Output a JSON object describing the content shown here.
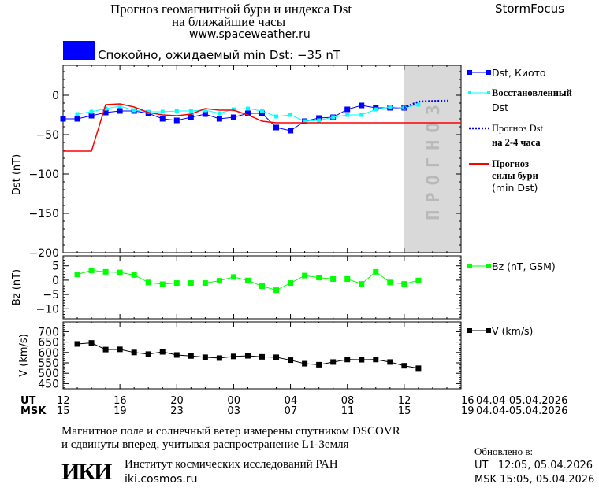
{
  "header": {
    "title_line1": "Прогноз геомагнитной бури и индекса Dst",
    "title_line2": "на ближайшие часы",
    "site": "www.spaceweather.ru",
    "brand": "StormFocus",
    "status_color": "#0000ff",
    "status_text": "Спокойно, ожидаемый min Dst: −35 nT"
  },
  "forecast_band_label": "ПРОГНОЗ",
  "legend": {
    "kyoto": "Dst, Киото",
    "restored_1": "Восстановленный",
    "restored_2": "Dst",
    "forecast_1": "Прогноз Dst",
    "forecast_2": "на 2-4 часа",
    "storm_1": "Прогноз",
    "storm_2": "силы бури",
    "storm_3": "(min Dst)",
    "bz": "Bz (nT, GSM)",
    "v": "V (km/s)"
  },
  "xaxis": {
    "ut_label": "UT",
    "msk_label": "MSK",
    "ut_ticks": [
      "12",
      "16",
      "20",
      "00",
      "04",
      "08",
      "12",
      "16"
    ],
    "msk_ticks": [
      "15",
      "19",
      "23",
      "03",
      "07",
      "11",
      "15",
      "19"
    ],
    "ut_range": "04.04-05.04.2026",
    "msk_range": "04.04-05.04.2026",
    "range": [
      "04.04 12:00",
      "05.04 16:00"
    ]
  },
  "chart_data": [
    {
      "type": "line",
      "ylabel": "Dst (nT)",
      "ylim": [
        -200,
        38
      ],
      "yticks": [
        0,
        -50,
        -100,
        -150,
        -200
      ],
      "ytick_labels": [
        "0",
        "−50",
        "−100",
        "−150",
        "−200"
      ],
      "forecast_region": [
        "05.04 12:00",
        "05.04 16:00"
      ],
      "series": [
        {
          "name": "Dst, Киото",
          "color": "#0000ff",
          "marker": "square",
          "x": [
            "04.04 12:00",
            "04.04 13:00",
            "04.04 14:00",
            "04.04 15:00",
            "04.04 16:00",
            "04.04 17:00",
            "04.04 18:00",
            "04.04 19:00",
            "04.04 20:00",
            "04.04 21:00",
            "04.04 22:00",
            "04.04 23:00",
            "05.04 00:00",
            "05.04 01:00",
            "05.04 02:00",
            "05.04 03:00",
            "05.04 04:00",
            "05.04 05:00",
            "05.04 06:00",
            "05.04 07:00",
            "05.04 08:00",
            "05.04 09:00",
            "05.04 10:00",
            "05.04 11:00",
            "05.04 12:00"
          ],
          "y": [
            -30,
            -30,
            -26,
            -22,
            -20,
            -20,
            -23,
            -30,
            -32,
            -28,
            -24,
            -30,
            -28,
            -23,
            -23,
            -41,
            -45,
            -33,
            -29,
            -28,
            -18,
            -13,
            -16,
            -16,
            -16
          ]
        },
        {
          "name": "Восстановленный Dst",
          "color": "#00ffff",
          "marker": "square-small",
          "x": [
            "04.04 13:00",
            "04.04 14:00",
            "04.04 15:00",
            "04.04 16:00",
            "04.04 17:00",
            "04.04 18:00",
            "04.04 19:00",
            "04.04 20:00",
            "04.04 21:00",
            "04.04 22:00",
            "04.04 23:00",
            "05.04 00:00",
            "05.04 01:00",
            "05.04 02:00",
            "05.04 03:00",
            "05.04 04:00",
            "05.04 05:00",
            "05.04 06:00",
            "05.04 07:00",
            "05.04 08:00",
            "05.04 09:00",
            "05.04 10:00",
            "05.04 11:00",
            "05.04 12:00",
            "05.04 13:00"
          ],
          "y": [
            -24,
            -21,
            -17,
            -14,
            -19,
            -21,
            -21,
            -20,
            -20,
            -19,
            -23,
            -18,
            -17,
            -20,
            -27,
            -25,
            -33,
            -32,
            -28,
            -25,
            -25,
            -18,
            -15,
            -16,
            -12
          ]
        },
        {
          "name": "Прогноз Dst на 2-4 часа",
          "color": "#0000ff",
          "style": "dotted",
          "x": [
            "05.04 12:00",
            "05.04 13:00",
            "05.04 15:06"
          ],
          "y": [
            -16,
            -8,
            -7
          ]
        },
        {
          "name": "Прогноз силы бури (min Dst)",
          "color": "#ff0000",
          "x": [
            "04.04 12:00",
            "04.04 14:00",
            "04.04 15:00",
            "04.04 16:00",
            "04.04 17:00",
            "04.04 18:00",
            "04.04 19:00",
            "04.04 20:00",
            "04.04 21:00",
            "04.04 22:00",
            "04.04 23:00",
            "05.04 00:00",
            "05.04 01:00",
            "05.04 02:00",
            "05.04 03:00",
            "05.04 16:00"
          ],
          "y": [
            -71,
            -71,
            -12,
            -11,
            -15,
            -22,
            -25,
            -26,
            -24,
            -17,
            -19,
            -19,
            -25,
            -33,
            -35,
            -35
          ]
        }
      ]
    },
    {
      "type": "line",
      "ylabel": "Bz (nT)",
      "ylim": [
        -13.5,
        8.5
      ],
      "yticks": [
        5,
        0,
        -5,
        -10
      ],
      "ytick_labels": [
        "5",
        "0",
        "−5",
        "−10"
      ],
      "series": [
        {
          "name": "Bz (nT, GSM)",
          "color": "#00ff00",
          "marker": "square",
          "x": [
            "04.04 13:00",
            "04.04 14:00",
            "04.04 15:00",
            "04.04 16:00",
            "04.04 17:00",
            "04.04 18:00",
            "04.04 19:00",
            "04.04 20:00",
            "04.04 21:00",
            "04.04 22:00",
            "04.04 23:00",
            "05.04 00:00",
            "05.04 01:00",
            "05.04 02:00",
            "05.04 03:00",
            "05.04 04:00",
            "05.04 05:00",
            "05.04 06:00",
            "05.04 07:00",
            "05.04 08:00",
            "05.04 09:00",
            "05.04 10:00",
            "05.04 11:00",
            "05.04 12:00",
            "05.04 13:00"
          ],
          "y": [
            2.0,
            3.4,
            2.9,
            2.7,
            1.8,
            -0.8,
            -1.4,
            -1.0,
            -1.0,
            -1.0,
            -0.2,
            1.1,
            -0.1,
            -2.1,
            -3.5,
            -1.0,
            1.6,
            0.9,
            0.4,
            0.4,
            -1.3,
            2.9,
            -0.8,
            -1.3,
            -0.1
          ]
        }
      ]
    },
    {
      "type": "line",
      "ylabel": "V (km/s)",
      "ylim": [
        425,
        747
      ],
      "yticks": [
        700,
        650,
        600,
        550,
        500,
        450
      ],
      "ytick_labels": [
        "700",
        "650",
        "600",
        "550",
        "500",
        "450"
      ],
      "series": [
        {
          "name": "V (km/s)",
          "color": "#000000",
          "marker": "square",
          "x": [
            "04.04 13:00",
            "04.04 14:00",
            "04.04 15:00",
            "04.04 16:00",
            "04.04 17:00",
            "04.04 18:00",
            "04.04 19:00",
            "04.04 20:00",
            "04.04 21:00",
            "04.04 22:00",
            "04.04 23:00",
            "05.04 00:00",
            "05.04 01:00",
            "05.04 02:00",
            "05.04 03:00",
            "05.04 04:00",
            "05.04 05:00",
            "05.04 06:00",
            "05.04 07:00",
            "05.04 08:00",
            "05.04 09:00",
            "05.04 10:00",
            "05.04 11:00",
            "05.04 12:00",
            "05.04 13:00"
          ],
          "y": [
            641,
            646,
            614,
            615,
            600,
            592,
            603,
            588,
            583,
            577,
            573,
            581,
            584,
            579,
            577,
            563,
            546,
            541,
            554,
            566,
            565,
            566,
            554,
            536,
            524
          ]
        }
      ]
    }
  ],
  "footer": {
    "note_1": "Магнитное поле и солнечный ветер измерены спутником DSCOVR",
    "note_2": "и сдвинуты вперед, учитывая распространение L1-Земля",
    "logo_text": "ИКИ",
    "institute": "Институт космических исследований РАН",
    "institute_site": "iki.cosmos.ru",
    "updated_label": "Обновлено в:",
    "updated_ut": "UT   12:05, 05.04.2026",
    "updated_msk": "MSK 15:05, 05.04.2026"
  }
}
